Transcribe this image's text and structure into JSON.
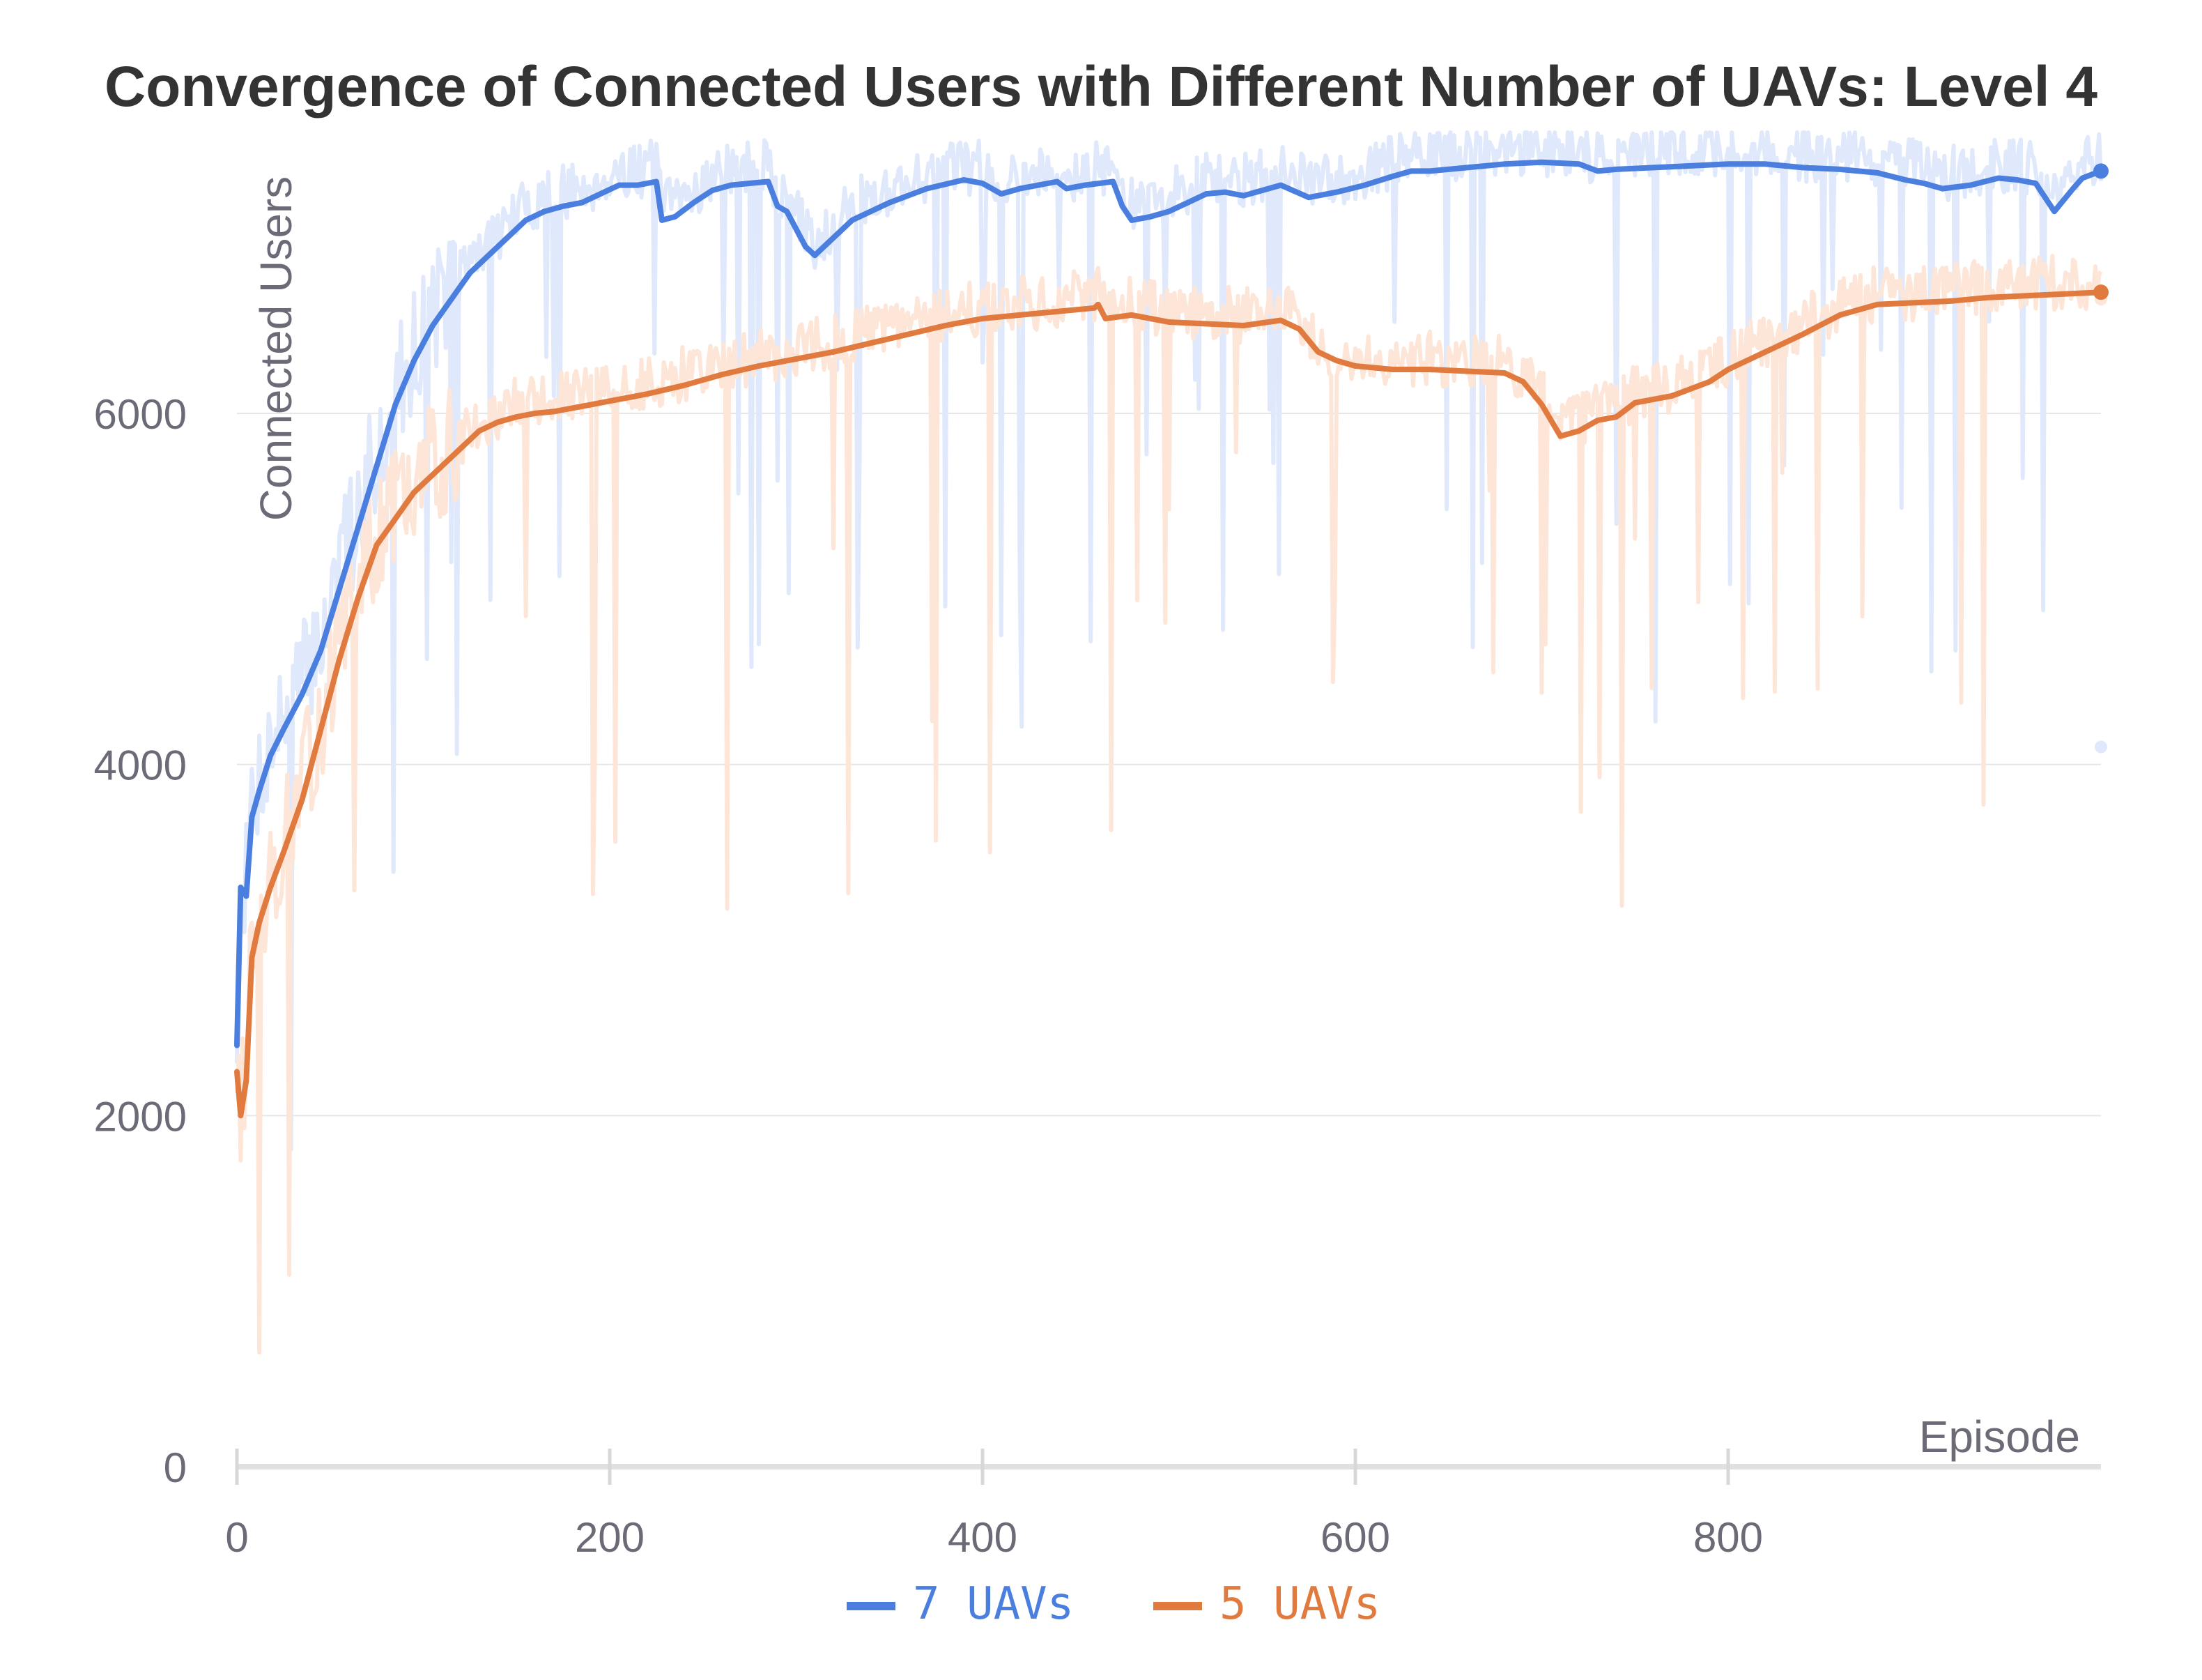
{
  "chart_data": {
    "type": "line",
    "title": "Convergence of Connected Users with Different Number of UAVs: Level 4",
    "xlabel": "Episode",
    "ylabel": "Connected Users",
    "xlim": [
      0,
      1000
    ],
    "ylim": [
      0,
      7600
    ],
    "x_ticks": [
      "0",
      "200",
      "400",
      "600",
      "800"
    ],
    "y_ticks": [
      "0",
      "2000",
      "4000",
      "6000"
    ],
    "grid": true,
    "legend_position": "bottom-center",
    "series": [
      {
        "name": "7 UAVs",
        "color": "#4a7fe0",
        "raw_color": "#dfe9fb",
        "last_raw_value": 4100,
        "smoothed": {
          "x": [
            0,
            2,
            5,
            8,
            12,
            18,
            25,
            35,
            45,
            55,
            65,
            75,
            85,
            95,
            105,
            115,
            125,
            135,
            145,
            155,
            165,
            175,
            185,
            195,
            205,
            215,
            225,
            228,
            235,
            245,
            255,
            265,
            275,
            285,
            290,
            295,
            305,
            310,
            315,
            330,
            350,
            370,
            390,
            400,
            410,
            420,
            440,
            445,
            455,
            470,
            475,
            480,
            490,
            500,
            510,
            520,
            530,
            540,
            550,
            560,
            575,
            590,
            605,
            620,
            630,
            640,
            660,
            680,
            700,
            720,
            730,
            740,
            760,
            780,
            800,
            820,
            840,
            860,
            880,
            895,
            905,
            915,
            930,
            945,
            955,
            965,
            975,
            985,
            990,
            1000
          ],
          "y": [
            2400,
            3300,
            3250,
            3700,
            3850,
            4050,
            4200,
            4400,
            4650,
            5000,
            5350,
            5700,
            6050,
            6300,
            6500,
            6650,
            6800,
            6900,
            7000,
            7100,
            7150,
            7180,
            7200,
            7250,
            7300,
            7300,
            7320,
            7100,
            7120,
            7200,
            7270,
            7300,
            7310,
            7320,
            7180,
            7150,
            6950,
            6900,
            6950,
            7100,
            7200,
            7280,
            7330,
            7310,
            7250,
            7280,
            7320,
            7280,
            7300,
            7320,
            7180,
            7100,
            7120,
            7150,
            7200,
            7250,
            7260,
            7240,
            7270,
            7300,
            7230,
            7260,
            7300,
            7350,
            7380,
            7380,
            7400,
            7420,
            7430,
            7420,
            7380,
            7390,
            7400,
            7410,
            7420,
            7420,
            7400,
            7390,
            7370,
            7330,
            7310,
            7280,
            7300,
            7340,
            7330,
            7310,
            7150,
            7280,
            7340,
            7380
          ]
        }
      },
      {
        "name": "5 UAVs",
        "color": "#e07a3e",
        "raw_color": "#fde6d8",
        "last_raw_value": 6650,
        "smoothed": {
          "x": [
            0,
            2,
            5,
            8,
            12,
            18,
            25,
            35,
            45,
            55,
            65,
            75,
            85,
            95,
            100,
            110,
            120,
            130,
            140,
            150,
            160,
            170,
            180,
            190,
            200,
            210,
            220,
            240,
            260,
            280,
            300,
            320,
            340,
            360,
            380,
            400,
            420,
            440,
            460,
            462,
            466,
            480,
            500,
            520,
            540,
            560,
            570,
            580,
            590,
            600,
            620,
            640,
            660,
            680,
            690,
            700,
            710,
            720,
            730,
            740,
            750,
            770,
            790,
            800,
            820,
            840,
            860,
            880,
            900,
            920,
            940,
            960,
            980,
            1000
          ],
          "y": [
            2250,
            2000,
            2200,
            2900,
            3100,
            3300,
            3500,
            3800,
            4200,
            4600,
            4950,
            5250,
            5400,
            5550,
            5600,
            5700,
            5800,
            5900,
            5950,
            5980,
            6000,
            6010,
            6030,
            6050,
            6070,
            6090,
            6110,
            6160,
            6220,
            6270,
            6310,
            6350,
            6400,
            6450,
            6500,
            6540,
            6560,
            6580,
            6600,
            6620,
            6540,
            6560,
            6520,
            6510,
            6500,
            6530,
            6480,
            6350,
            6300,
            6270,
            6250,
            6250,
            6240,
            6230,
            6180,
            6050,
            5870,
            5900,
            5960,
            5980,
            6060,
            6100,
            6180,
            6250,
            6350,
            6450,
            6560,
            6620,
            6630,
            6640,
            6660,
            6670,
            6680,
            6690
          ]
        }
      }
    ]
  }
}
